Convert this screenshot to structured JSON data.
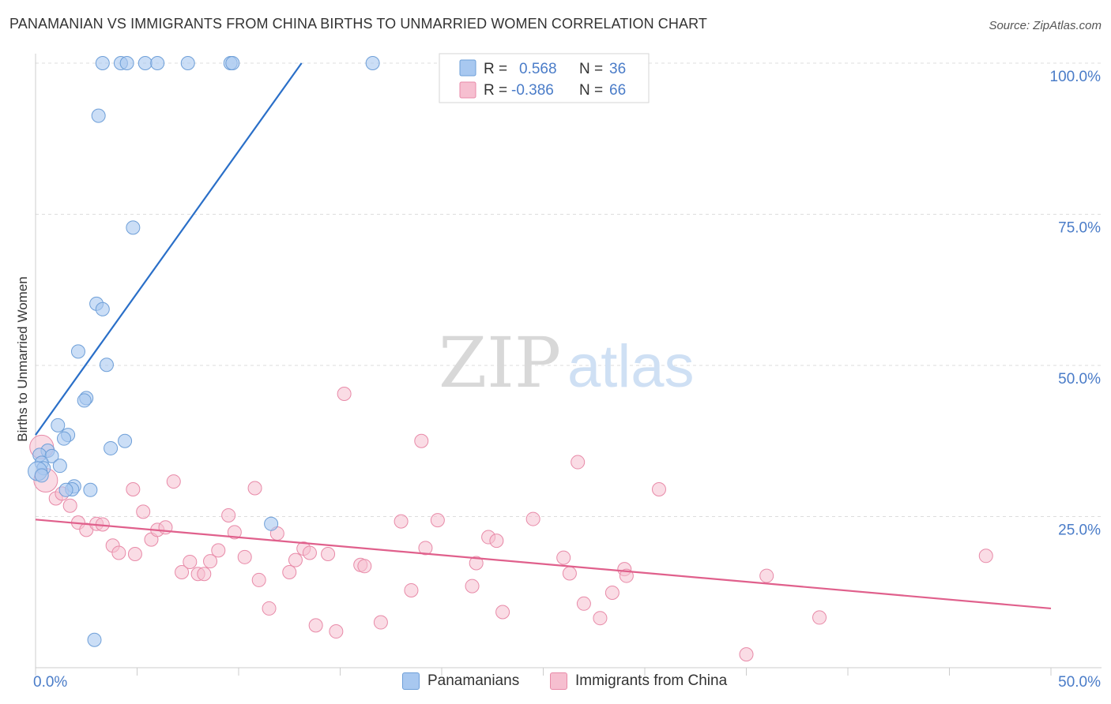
{
  "title": "PANAMANIAN VS IMMIGRANTS FROM CHINA BIRTHS TO UNMARRIED WOMEN CORRELATION CHART",
  "source": "Source: ZipAtlas.com",
  "watermark": {
    "zip": "ZIP",
    "atlas": "atlas"
  },
  "colors": {
    "blue_fill": "#a8c8f0",
    "blue_stroke": "#6e9fd8",
    "blue_line": "#2a6fc8",
    "pink_fill": "#f6bfd0",
    "pink_stroke": "#e88aa8",
    "pink_line": "#e0608c",
    "tick_text": "#4a7cc8",
    "grid": "#dddddd"
  },
  "legend": {
    "rows": [
      {
        "r_label": "R =",
        "r_value": "0.568",
        "n_label": "N =",
        "n_value": "36"
      },
      {
        "r_label": "R =",
        "r_value": "-0.386",
        "n_label": "N =",
        "n_value": "66"
      }
    ]
  },
  "bottom_legend": [
    "Panamanians",
    "Immigrants from China"
  ],
  "chart_data": {
    "type": "scatter",
    "ylabel": "Births to Unmarried Women",
    "xlim": [
      0,
      50
    ],
    "ylim": [
      0,
      100
    ],
    "x_tick_labels": [
      "0.0%",
      "50.0%"
    ],
    "y_ticks": [
      25,
      50,
      75,
      100
    ],
    "y_tick_labels": [
      "25.0%",
      "50.0%",
      "75.0%",
      "100.0%"
    ],
    "grid": "horizontal dashed",
    "legend_placement": "top-center",
    "series": [
      {
        "name": "Panamanians",
        "trend": {
          "x": [
            0,
            13.1
          ],
          "y": [
            38.5,
            100
          ]
        },
        "points": [
          [
            3.3,
            100
          ],
          [
            4.2,
            100
          ],
          [
            4.5,
            100
          ],
          [
            5.4,
            100
          ],
          [
            6.0,
            100
          ],
          [
            7.5,
            100
          ],
          [
            9.6,
            100
          ],
          [
            9.7,
            100
          ],
          [
            16.6,
            100
          ],
          [
            3.1,
            91.3
          ],
          [
            4.8,
            72.8
          ],
          [
            3.0,
            60.2
          ],
          [
            3.3,
            59.3
          ],
          [
            2.1,
            52.3
          ],
          [
            3.5,
            50.1
          ],
          [
            2.5,
            44.6
          ],
          [
            2.4,
            44.2
          ],
          [
            1.1,
            40.1
          ],
          [
            1.6,
            38.5
          ],
          [
            1.4,
            37.9
          ],
          [
            4.4,
            37.5
          ],
          [
            3.7,
            36.3
          ],
          [
            0.6,
            35.9
          ],
          [
            0.2,
            35.2
          ],
          [
            0.8,
            35.0
          ],
          [
            0.3,
            33.9
          ],
          [
            1.2,
            33.4
          ],
          [
            0.4,
            33.0
          ],
          [
            0.1,
            32.5
          ],
          [
            0.3,
            31.8
          ],
          [
            1.9,
            30.0
          ],
          [
            1.8,
            29.5
          ],
          [
            1.5,
            29.4
          ],
          [
            2.7,
            29.4
          ],
          [
            11.6,
            23.8
          ],
          [
            2.9,
            4.6
          ]
        ]
      },
      {
        "name": "Immigrants from China",
        "trend": {
          "x": [
            0,
            50
          ],
          "y": [
            24.5,
            9.8
          ]
        },
        "points": [
          [
            0.3,
            36.5
          ],
          [
            0.5,
            31.0
          ],
          [
            1.0,
            28.0
          ],
          [
            1.3,
            28.8
          ],
          [
            1.7,
            26.8
          ],
          [
            2.1,
            24.0
          ],
          [
            2.5,
            22.8
          ],
          [
            3.0,
            23.8
          ],
          [
            3.3,
            23.7
          ],
          [
            3.8,
            20.2
          ],
          [
            4.1,
            19.0
          ],
          [
            4.8,
            29.5
          ],
          [
            4.9,
            18.8
          ],
          [
            5.3,
            25.8
          ],
          [
            5.7,
            21.2
          ],
          [
            6.0,
            22.8
          ],
          [
            6.4,
            23.2
          ],
          [
            6.8,
            30.8
          ],
          [
            7.2,
            15.8
          ],
          [
            7.6,
            17.5
          ],
          [
            8.0,
            15.5
          ],
          [
            8.3,
            15.5
          ],
          [
            8.6,
            17.6
          ],
          [
            9.0,
            19.4
          ],
          [
            9.5,
            25.2
          ],
          [
            9.8,
            22.4
          ],
          [
            10.3,
            18.3
          ],
          [
            10.8,
            29.7
          ],
          [
            11.0,
            14.5
          ],
          [
            11.5,
            9.8
          ],
          [
            11.9,
            22.2
          ],
          [
            12.5,
            15.8
          ],
          [
            12.8,
            17.8
          ],
          [
            13.2,
            19.7
          ],
          [
            13.5,
            19.0
          ],
          [
            13.8,
            7.0
          ],
          [
            14.4,
            18.8
          ],
          [
            14.8,
            6.0
          ],
          [
            15.2,
            45.3
          ],
          [
            16.0,
            17.0
          ],
          [
            16.2,
            16.8
          ],
          [
            17.0,
            7.5
          ],
          [
            18.0,
            24.2
          ],
          [
            18.5,
            12.8
          ],
          [
            19.0,
            37.5
          ],
          [
            19.2,
            19.8
          ],
          [
            19.8,
            24.4
          ],
          [
            21.5,
            13.5
          ],
          [
            21.7,
            17.3
          ],
          [
            22.3,
            21.6
          ],
          [
            22.7,
            21.0
          ],
          [
            23.0,
            9.2
          ],
          [
            24.5,
            24.6
          ],
          [
            26.0,
            18.2
          ],
          [
            26.3,
            15.6
          ],
          [
            26.7,
            34.0
          ],
          [
            27.0,
            10.6
          ],
          [
            27.8,
            8.2
          ],
          [
            28.4,
            12.4
          ],
          [
            29.0,
            16.3
          ],
          [
            29.1,
            15.2
          ],
          [
            30.7,
            29.5
          ],
          [
            35.0,
            2.2
          ],
          [
            36.0,
            15.2
          ],
          [
            38.6,
            8.3
          ],
          [
            46.8,
            18.5
          ]
        ]
      }
    ]
  }
}
